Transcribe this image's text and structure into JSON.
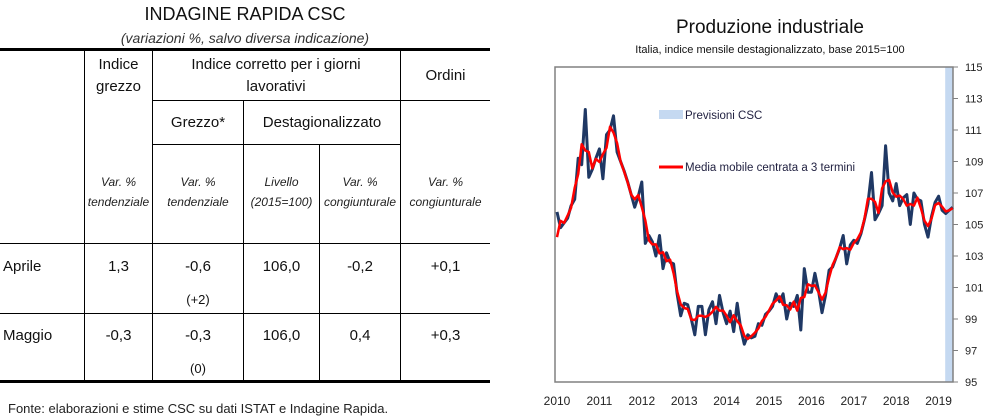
{
  "table": {
    "title": "INDAGINE RAPIDA CSC",
    "subtitle": "(variazioni %, salvo diversa indicazione)",
    "headers": {
      "indice_grezzo": "Indice grezzo",
      "indice_corretto": "Indice corretto per i giorni lavorativi",
      "ordini": "Ordini",
      "grezzo": "Grezzo*",
      "destagionalizzato": "Destagionalizzato",
      "units": [
        "Var. % tendenziale",
        "Var. % tendenziale",
        "Livello (2015=100)",
        "Var. % congiunturale",
        "Var. % congiunturale"
      ]
    },
    "rows": [
      {
        "label": "Aprile",
        "values": [
          "1,3",
          "-0,6",
          "106,0",
          "-0,2",
          "+0,1"
        ],
        "note": "(+2)"
      },
      {
        "label": "Maggio",
        "values": [
          "-0,3",
          "-0,3",
          "106,0",
          "0,4",
          "+0,3"
        ],
        "note": "(0)"
      }
    ],
    "footer": "Fonte: elaborazioni e stime CSC su dati ISTAT e Indagine Rapida."
  },
  "chart_data": {
    "type": "line",
    "title": "Produzione industriale",
    "subtitle": "Italia, indice mensile destagionalizzato, base 2015=100",
    "x_start": "2010-01",
    "frequency": "monthly",
    "x_ticks": [
      "2010",
      "2011",
      "2012",
      "2013",
      "2014",
      "2015",
      "2016",
      "2017",
      "2018",
      "2019"
    ],
    "y_ticks": [
      "95",
      "97",
      "99",
      "101",
      "103",
      "105",
      "107",
      "109",
      "111",
      "113",
      "115"
    ],
    "ylim": [
      95,
      115
    ],
    "y_axis_side": "right",
    "grid": false,
    "forecast_band": {
      "label": "Previsioni CSC",
      "from": "2019-04",
      "to": "2019-05",
      "color": "#c5d9f1"
    },
    "series": [
      {
        "key": "index",
        "color": "#1f3864",
        "values": [
          105.8,
          104.8,
          105.1,
          105.4,
          106.2,
          106.6,
          109.2,
          108.8,
          112.3,
          108.0,
          108.5,
          109.2,
          109.8,
          107.9,
          110.7,
          111.0,
          111.9,
          109.6,
          109.0,
          108.4,
          107.7,
          106.9,
          106.1,
          106.8,
          107.7,
          103.8,
          104.3,
          103.9,
          103.0,
          104.3,
          102.2,
          103.2,
          102.6,
          102.5,
          100.6,
          99.2,
          100.0,
          99.9,
          99.0,
          98.0,
          99.8,
          99.8,
          98.0,
          99.6,
          100.1,
          98.7,
          100.5,
          99.4,
          98.7,
          99.5,
          98.2,
          100.0,
          98.4,
          97.4,
          98.0,
          97.8,
          97.9,
          98.7,
          98.6,
          99.3,
          99.5,
          99.8,
          100.6,
          100.1,
          100.6,
          99.0,
          100.0,
          99.8,
          100.5,
          98.3,
          102.2,
          100.7,
          100.7,
          101.9,
          100.8,
          99.4,
          100.5,
          102.1,
          102.3,
          102.9,
          103.5,
          104.3,
          102.5,
          103.7,
          104.0,
          103.8,
          104.4,
          105.3,
          106.3,
          108.3,
          105.3,
          105.7,
          106.2,
          110.0,
          107.0,
          106.5,
          107.6,
          106.2,
          106.7,
          106.9,
          105.0,
          107.0,
          106.6,
          106.5,
          105.0,
          104.2,
          105.5,
          106.4,
          106.8,
          105.9,
          105.7,
          105.9,
          106.1
        ]
      },
      {
        "key": "ma3",
        "name": "Media mobile centrata a 3 termini",
        "color": "#ff0000"
      }
    ]
  }
}
